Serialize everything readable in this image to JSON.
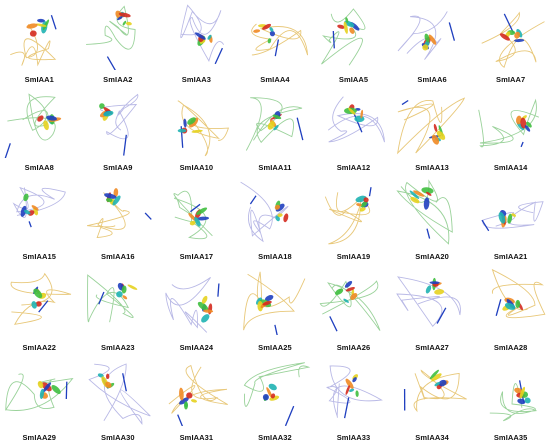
{
  "figure": {
    "labels": [
      "SmIAA1",
      "SmIAA2",
      "SmIAA3",
      "SmIAA4",
      "SmIAA5",
      "SmIAA6",
      "SmIAA7",
      "SmIAA8",
      "SmIAA9",
      "SmIAA10",
      "SmIAA11",
      "SmIAA12",
      "SmIAA13",
      "SmIAA14",
      "SmIAA15",
      "SmIAA16",
      "SmIAA17",
      "SmIAA18",
      "SmIAA19",
      "SmIAA20",
      "SmIAA21",
      "SmIAA22",
      "SmIAA23",
      "SmIAA24",
      "SmIAA25",
      "SmIAA26",
      "SmIAA27",
      "SmIAA28",
      "SmIAA29",
      "SmIAA30",
      "SmIAA31",
      "SmIAA32",
      "SmIAA33",
      "SmIAA34",
      "SmIAA35"
    ],
    "colors": {
      "blue": "#1f3fbf",
      "cyan": "#1fb3b3",
      "green": "#3fbf3f",
      "yellow": "#e6d21f",
      "orange": "#f08a24",
      "red": "#d42a1f",
      "loop": "#c8c8c8"
    }
  }
}
